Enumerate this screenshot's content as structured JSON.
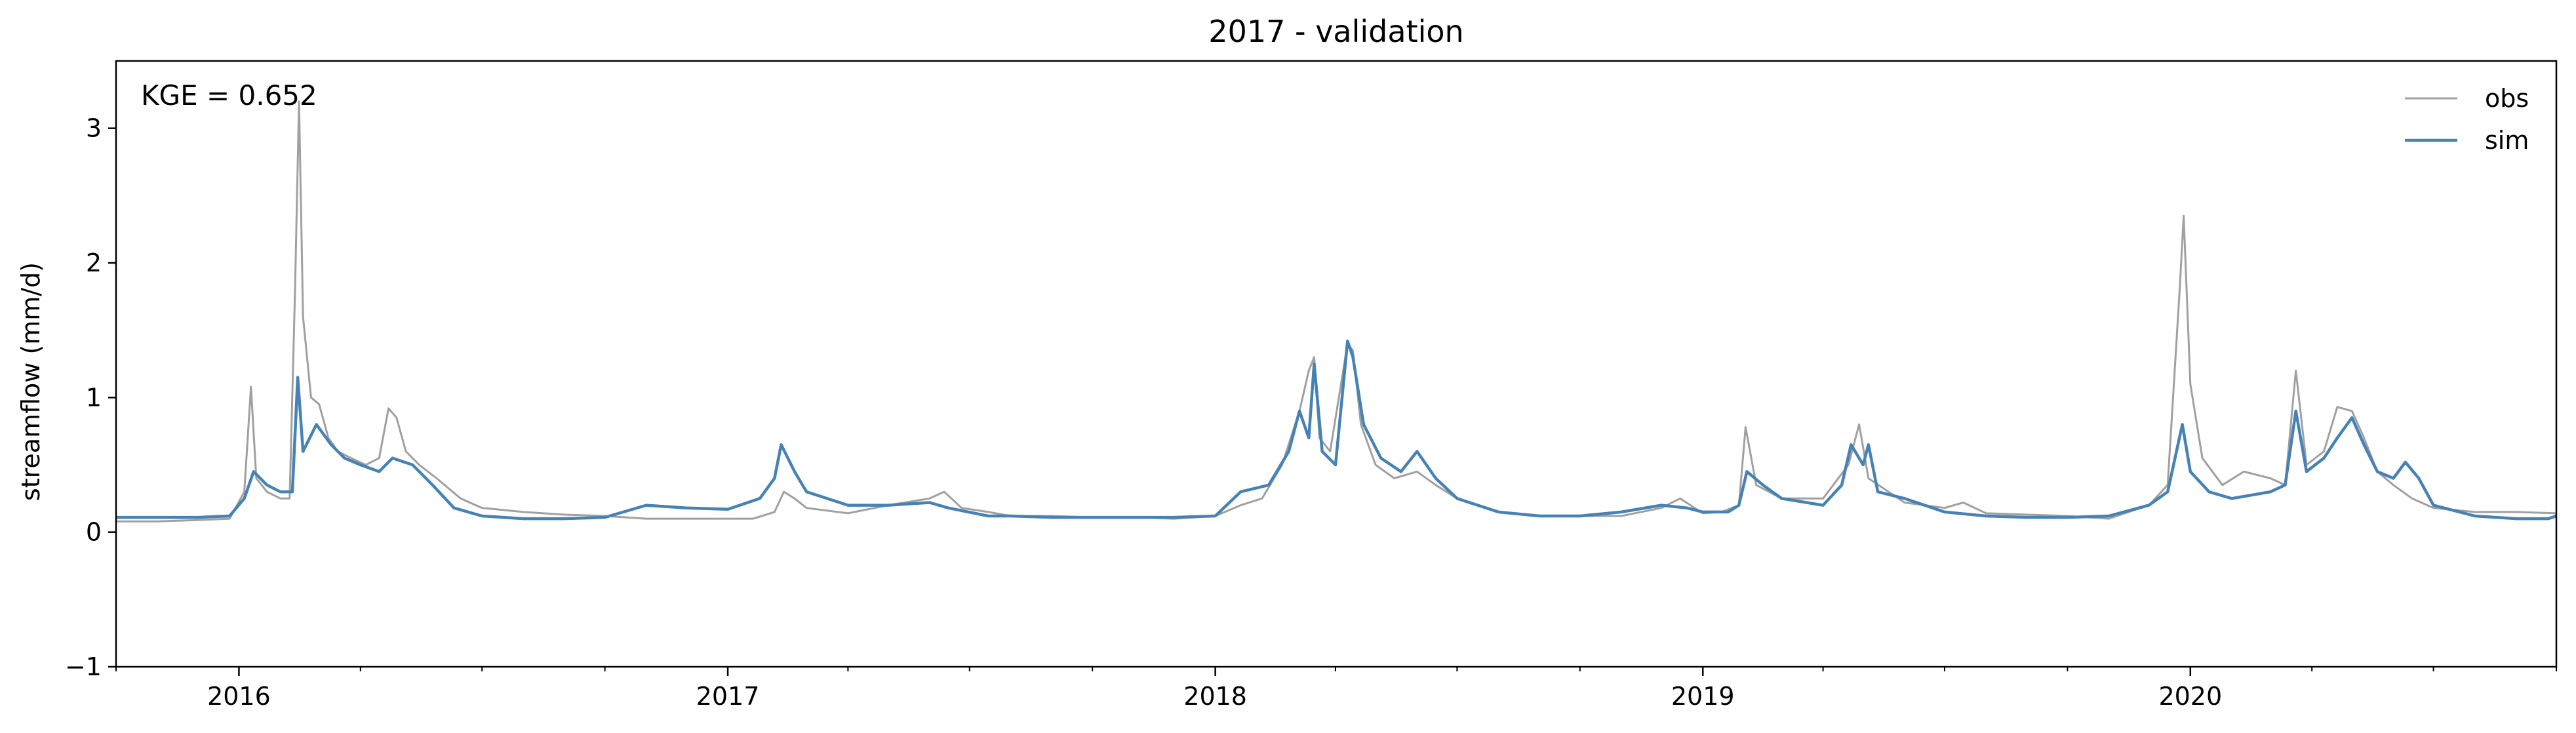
{
  "chart_data": {
    "type": "line",
    "title": "2017 - validation",
    "xlabel": "",
    "ylabel": "streamflow (mm/d)",
    "x_range": [
      "2015-10-01",
      "2020-10-01"
    ],
    "ylim": [
      -1,
      3.5
    ],
    "y_ticks": [
      -1,
      0,
      1,
      2,
      3
    ],
    "y_tick_labels": [
      "−1",
      "0",
      "1",
      "2",
      "3"
    ],
    "x_ticks": [
      "2016-01-01",
      "2017-01-01",
      "2018-01-01",
      "2019-01-01",
      "2020-01-01"
    ],
    "x_tick_labels": [
      "2016",
      "2017",
      "2018",
      "2019",
      "2020"
    ],
    "grid": false,
    "legend_position": "top-right",
    "annotation": "KGE = 0.652",
    "series": [
      {
        "name": "obs",
        "color": "#a0a0a0",
        "points": [
          [
            "2015-10-01",
            0.08
          ],
          [
            "2015-11-01",
            0.08
          ],
          [
            "2015-12-01",
            0.09
          ],
          [
            "2015-12-25",
            0.1
          ],
          [
            "2016-01-05",
            0.3
          ],
          [
            "2016-01-10",
            1.08
          ],
          [
            "2016-01-14",
            0.4
          ],
          [
            "2016-01-22",
            0.3
          ],
          [
            "2016-02-01",
            0.25
          ],
          [
            "2016-02-08",
            0.25
          ],
          [
            "2016-02-12",
            1.8
          ],
          [
            "2016-02-15",
            3.2
          ],
          [
            "2016-02-18",
            1.6
          ],
          [
            "2016-02-24",
            1.0
          ],
          [
            "2016-03-01",
            0.95
          ],
          [
            "2016-03-08",
            0.7
          ],
          [
            "2016-03-15",
            0.6
          ],
          [
            "2016-03-25",
            0.55
          ],
          [
            "2016-04-05",
            0.5
          ],
          [
            "2016-04-15",
            0.55
          ],
          [
            "2016-04-22",
            0.92
          ],
          [
            "2016-04-28",
            0.85
          ],
          [
            "2016-05-05",
            0.6
          ],
          [
            "2016-05-15",
            0.5
          ],
          [
            "2016-05-28",
            0.4
          ],
          [
            "2016-06-15",
            0.25
          ],
          [
            "2016-07-01",
            0.18
          ],
          [
            "2016-08-01",
            0.15
          ],
          [
            "2016-09-01",
            0.13
          ],
          [
            "2016-10-01",
            0.12
          ],
          [
            "2016-11-01",
            0.1
          ],
          [
            "2016-12-01",
            0.1
          ],
          [
            "2017-01-01",
            0.1
          ],
          [
            "2017-01-20",
            0.1
          ],
          [
            "2017-02-05",
            0.15
          ],
          [
            "2017-02-12",
            0.3
          ],
          [
            "2017-02-20",
            0.25
          ],
          [
            "2017-03-01",
            0.18
          ],
          [
            "2017-04-01",
            0.14
          ],
          [
            "2017-05-01",
            0.2
          ],
          [
            "2017-06-01",
            0.25
          ],
          [
            "2017-06-12",
            0.3
          ],
          [
            "2017-06-25",
            0.18
          ],
          [
            "2017-07-15",
            0.15
          ],
          [
            "2017-08-01",
            0.12
          ],
          [
            "2017-09-01",
            0.12
          ],
          [
            "2017-10-01",
            0.11
          ],
          [
            "2017-11-01",
            0.11
          ],
          [
            "2017-12-01",
            0.1
          ],
          [
            "2018-01-01",
            0.12
          ],
          [
            "2018-01-20",
            0.2
          ],
          [
            "2018-02-05",
            0.25
          ],
          [
            "2018-02-20",
            0.5
          ],
          [
            "2018-03-05",
            0.9
          ],
          [
            "2018-03-12",
            1.2
          ],
          [
            "2018-03-16",
            1.3
          ],
          [
            "2018-03-20",
            0.7
          ],
          [
            "2018-03-28",
            0.6
          ],
          [
            "2018-04-10",
            1.4
          ],
          [
            "2018-04-14",
            1.35
          ],
          [
            "2018-04-20",
            0.8
          ],
          [
            "2018-05-01",
            0.5
          ],
          [
            "2018-05-15",
            0.4
          ],
          [
            "2018-06-01",
            0.45
          ],
          [
            "2018-06-15",
            0.35
          ],
          [
            "2018-07-01",
            0.25
          ],
          [
            "2018-08-01",
            0.15
          ],
          [
            "2018-09-01",
            0.12
          ],
          [
            "2018-10-01",
            0.12
          ],
          [
            "2018-11-01",
            0.12
          ],
          [
            "2018-12-01",
            0.18
          ],
          [
            "2018-12-15",
            0.25
          ],
          [
            "2019-01-01",
            0.14
          ],
          [
            "2019-01-15",
            0.15
          ],
          [
            "2019-01-28",
            0.2
          ],
          [
            "2019-02-02",
            0.78
          ],
          [
            "2019-02-10",
            0.35
          ],
          [
            "2019-03-01",
            0.25
          ],
          [
            "2019-04-01",
            0.25
          ],
          [
            "2019-04-20",
            0.5
          ],
          [
            "2019-04-28",
            0.8
          ],
          [
            "2019-05-05",
            0.4
          ],
          [
            "2019-06-01",
            0.22
          ],
          [
            "2019-07-01",
            0.18
          ],
          [
            "2019-07-15",
            0.22
          ],
          [
            "2019-08-01",
            0.14
          ],
          [
            "2019-09-01",
            0.13
          ],
          [
            "2019-10-01",
            0.12
          ],
          [
            "2019-11-01",
            0.1
          ],
          [
            "2019-12-01",
            0.2
          ],
          [
            "2019-12-15",
            0.35
          ],
          [
            "2019-12-24",
            1.8
          ],
          [
            "2019-12-27",
            2.35
          ],
          [
            "2020-01-01",
            1.1
          ],
          [
            "2020-01-10",
            0.55
          ],
          [
            "2020-01-25",
            0.35
          ],
          [
            "2020-02-10",
            0.45
          ],
          [
            "2020-03-01",
            0.4
          ],
          [
            "2020-03-12",
            0.35
          ],
          [
            "2020-03-20",
            1.2
          ],
          [
            "2020-03-28",
            0.5
          ],
          [
            "2020-04-10",
            0.6
          ],
          [
            "2020-04-20",
            0.93
          ],
          [
            "2020-05-01",
            0.9
          ],
          [
            "2020-05-10",
            0.7
          ],
          [
            "2020-05-20",
            0.45
          ],
          [
            "2020-06-01",
            0.35
          ],
          [
            "2020-06-15",
            0.25
          ],
          [
            "2020-07-01",
            0.18
          ],
          [
            "2020-08-01",
            0.15
          ],
          [
            "2020-09-01",
            0.15
          ],
          [
            "2020-10-01",
            0.14
          ]
        ]
      },
      {
        "name": "sim",
        "color": "#4682b4",
        "points": [
          [
            "2015-10-01",
            0.11
          ],
          [
            "2015-11-01",
            0.11
          ],
          [
            "2015-12-01",
            0.11
          ],
          [
            "2015-12-25",
            0.12
          ],
          [
            "2016-01-05",
            0.25
          ],
          [
            "2016-01-12",
            0.45
          ],
          [
            "2016-01-22",
            0.35
          ],
          [
            "2016-02-01",
            0.3
          ],
          [
            "2016-02-10",
            0.3
          ],
          [
            "2016-02-14",
            1.15
          ],
          [
            "2016-02-18",
            0.6
          ],
          [
            "2016-02-28",
            0.8
          ],
          [
            "2016-03-10",
            0.65
          ],
          [
            "2016-03-20",
            0.55
          ],
          [
            "2016-04-01",
            0.5
          ],
          [
            "2016-04-15",
            0.45
          ],
          [
            "2016-04-25",
            0.55
          ],
          [
            "2016-05-10",
            0.5
          ],
          [
            "2016-05-25",
            0.35
          ],
          [
            "2016-06-10",
            0.18
          ],
          [
            "2016-07-01",
            0.12
          ],
          [
            "2016-08-01",
            0.1
          ],
          [
            "2016-09-01",
            0.1
          ],
          [
            "2016-10-01",
            0.11
          ],
          [
            "2016-11-01",
            0.2
          ],
          [
            "2016-12-01",
            0.18
          ],
          [
            "2017-01-01",
            0.17
          ],
          [
            "2017-01-25",
            0.25
          ],
          [
            "2017-02-05",
            0.4
          ],
          [
            "2017-02-10",
            0.65
          ],
          [
            "2017-02-20",
            0.45
          ],
          [
            "2017-03-01",
            0.3
          ],
          [
            "2017-04-01",
            0.2
          ],
          [
            "2017-05-01",
            0.2
          ],
          [
            "2017-06-01",
            0.22
          ],
          [
            "2017-06-15",
            0.18
          ],
          [
            "2017-07-15",
            0.12
          ],
          [
            "2017-08-01",
            0.12
          ],
          [
            "2017-09-01",
            0.11
          ],
          [
            "2017-10-01",
            0.11
          ],
          [
            "2017-11-01",
            0.11
          ],
          [
            "2017-12-01",
            0.11
          ],
          [
            "2018-01-01",
            0.12
          ],
          [
            "2018-01-20",
            0.3
          ],
          [
            "2018-02-10",
            0.35
          ],
          [
            "2018-02-25",
            0.6
          ],
          [
            "2018-03-05",
            0.9
          ],
          [
            "2018-03-12",
            0.7
          ],
          [
            "2018-03-16",
            1.25
          ],
          [
            "2018-03-22",
            0.6
          ],
          [
            "2018-04-01",
            0.5
          ],
          [
            "2018-04-10",
            1.42
          ],
          [
            "2018-04-14",
            1.3
          ],
          [
            "2018-04-22",
            0.8
          ],
          [
            "2018-05-05",
            0.55
          ],
          [
            "2018-05-20",
            0.45
          ],
          [
            "2018-06-01",
            0.6
          ],
          [
            "2018-06-15",
            0.4
          ],
          [
            "2018-07-01",
            0.25
          ],
          [
            "2018-08-01",
            0.15
          ],
          [
            "2018-09-01",
            0.12
          ],
          [
            "2018-10-01",
            0.12
          ],
          [
            "2018-11-01",
            0.15
          ],
          [
            "2018-12-01",
            0.2
          ],
          [
            "2018-12-20",
            0.18
          ],
          [
            "2019-01-01",
            0.15
          ],
          [
            "2019-01-20",
            0.15
          ],
          [
            "2019-01-28",
            0.2
          ],
          [
            "2019-02-03",
            0.45
          ],
          [
            "2019-02-15",
            0.35
          ],
          [
            "2019-03-01",
            0.25
          ],
          [
            "2019-04-01",
            0.2
          ],
          [
            "2019-04-15",
            0.35
          ],
          [
            "2019-04-22",
            0.65
          ],
          [
            "2019-05-01",
            0.5
          ],
          [
            "2019-05-05",
            0.65
          ],
          [
            "2019-05-12",
            0.3
          ],
          [
            "2019-06-01",
            0.25
          ],
          [
            "2019-07-01",
            0.15
          ],
          [
            "2019-08-01",
            0.12
          ],
          [
            "2019-09-01",
            0.11
          ],
          [
            "2019-10-01",
            0.11
          ],
          [
            "2019-11-01",
            0.12
          ],
          [
            "2019-12-01",
            0.2
          ],
          [
            "2019-12-15",
            0.3
          ],
          [
            "2019-12-26",
            0.8
          ],
          [
            "2020-01-01",
            0.45
          ],
          [
            "2020-01-15",
            0.3
          ],
          [
            "2020-02-01",
            0.25
          ],
          [
            "2020-03-01",
            0.3
          ],
          [
            "2020-03-12",
            0.35
          ],
          [
            "2020-03-20",
            0.9
          ],
          [
            "2020-03-28",
            0.45
          ],
          [
            "2020-04-10",
            0.55
          ],
          [
            "2020-04-20",
            0.7
          ],
          [
            "2020-05-01",
            0.85
          ],
          [
            "2020-05-10",
            0.65
          ],
          [
            "2020-05-20",
            0.45
          ],
          [
            "2020-06-01",
            0.4
          ],
          [
            "2020-06-10",
            0.52
          ],
          [
            "2020-06-20",
            0.4
          ],
          [
            "2020-07-01",
            0.2
          ],
          [
            "2020-08-01",
            0.12
          ],
          [
            "2020-09-01",
            0.1
          ],
          [
            "2020-09-25",
            0.1
          ],
          [
            "2020-10-01",
            0.12
          ]
        ]
      }
    ]
  }
}
